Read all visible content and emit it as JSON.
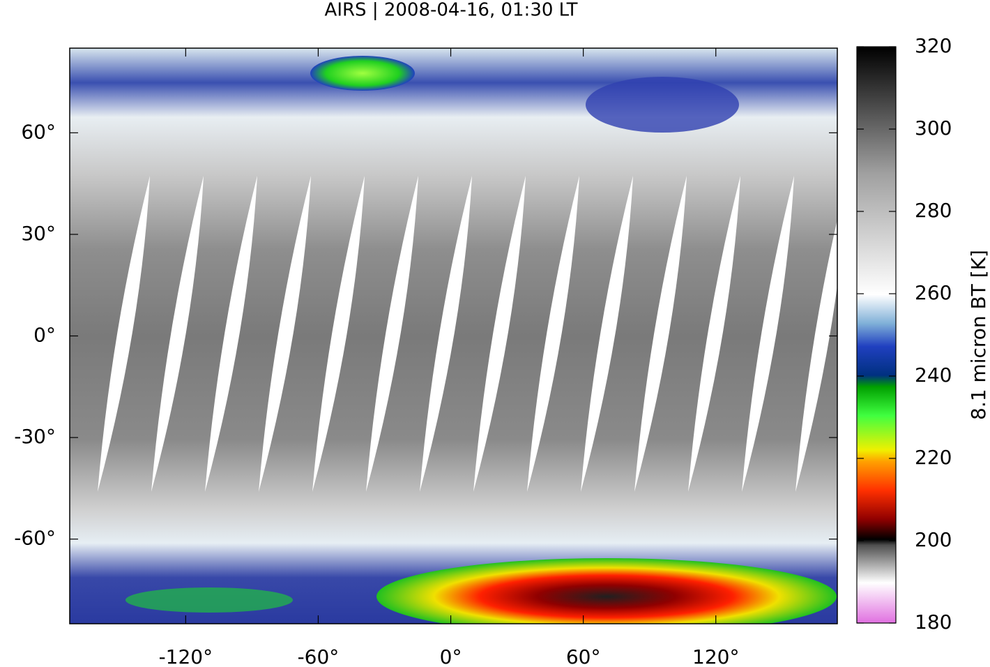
{
  "chart_data": {
    "type": "map",
    "title": "AIRS | 2008-04-16, 01:30 LT",
    "xlim": [
      -172.5,
      175
    ],
    "ylim": [
      -85,
      85
    ],
    "xticks": [
      {
        "value": -120,
        "label": "-120°"
      },
      {
        "value": -60,
        "label": "-60°"
      },
      {
        "value": 0,
        "label": "0°"
      },
      {
        "value": 60,
        "label": "60°"
      },
      {
        "value": 120,
        "label": "120°"
      }
    ],
    "yticks": [
      {
        "value": 60,
        "label": "60°"
      },
      {
        "value": 30,
        "label": "30°"
      },
      {
        "value": 0,
        "label": "0°"
      },
      {
        "value": -30,
        "label": "-30°"
      },
      {
        "value": -60,
        "label": "-60°"
      }
    ],
    "colorbar": {
      "label": "8.1 micron BT [K]",
      "lim": [
        180,
        320
      ],
      "ticks": [
        180,
        200,
        220,
        240,
        260,
        280,
        300,
        320
      ]
    }
  }
}
